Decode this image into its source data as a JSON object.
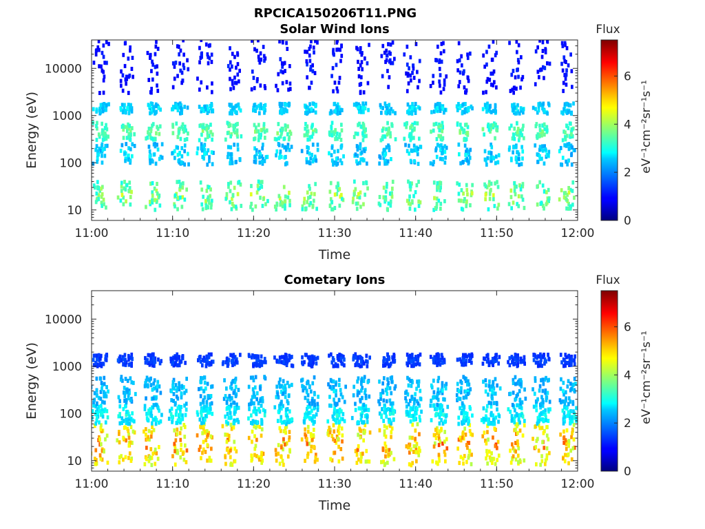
{
  "figure": {
    "title": "RPCICA150206T11.PNG"
  },
  "chart_data": [
    {
      "type": "heatmap",
      "title": "Solar Wind Ions",
      "xlabel": "Time",
      "ylabel": "Energy (eV)",
      "x_ticks": [
        "11:00",
        "11:10",
        "11:20",
        "11:30",
        "11:40",
        "11:50",
        "12:00"
      ],
      "x_range_minutes": [
        0,
        60
      ],
      "y_scale": "log",
      "y_ticks": [
        "10",
        "100",
        "1000",
        "10000"
      ],
      "y_tick_values": [
        10,
        100,
        1000,
        10000
      ],
      "y_range": [
        6,
        40000
      ],
      "colorbar": {
        "label": "Flux",
        "unit_label": "eV⁻¹cm⁻²sr⁻¹s⁻¹",
        "ticks": [
          "0",
          "2",
          "4",
          "6"
        ],
        "tick_values": [
          0,
          2,
          4,
          6
        ],
        "range": [
          0,
          7.5
        ],
        "colormap": "jet"
      },
      "pulse_centers_minutes": [
        1.2,
        4.3,
        7.7,
        10.9,
        14.1,
        17.5,
        20.7,
        23.7,
        26.9,
        30.2,
        33.3,
        36.5,
        39.6,
        42.9,
        46.1,
        49.3,
        52.5,
        55.6,
        58.8
      ],
      "bands": [
        {
          "energy_range": [
            10,
            40
          ],
          "flux_range": [
            2.0,
            4.6
          ]
        },
        {
          "energy_range": [
            90,
            250
          ],
          "flux_range": [
            1.6,
            3.0
          ]
        },
        {
          "energy_range": [
            300,
            700
          ],
          "flux_range": [
            2.4,
            4.0
          ]
        },
        {
          "energy_range": [
            1100,
            1800
          ],
          "flux_range": [
            1.8,
            3.0
          ]
        },
        {
          "energy_range": [
            3000,
            40000
          ],
          "flux_range": [
            0.6,
            1.3
          ]
        }
      ]
    },
    {
      "type": "heatmap",
      "title": "Cometary Ions",
      "xlabel": "Time",
      "ylabel": "Energy (eV)",
      "x_ticks": [
        "11:00",
        "11:10",
        "11:20",
        "11:30",
        "11:40",
        "11:50",
        "12:00"
      ],
      "x_range_minutes": [
        0,
        60
      ],
      "y_scale": "log",
      "y_ticks": [
        "10",
        "100",
        "1000",
        "10000"
      ],
      "y_tick_values": [
        10,
        100,
        1000,
        10000
      ],
      "y_range": [
        6,
        40000
      ],
      "colorbar": {
        "label": "Flux",
        "unit_label": "eV⁻¹cm⁻²sr⁻¹s⁻¹",
        "ticks": [
          "0",
          "2",
          "4",
          "6"
        ],
        "tick_values": [
          0,
          2,
          4,
          6
        ],
        "range": [
          0,
          7.5
        ],
        "colormap": "jet"
      },
      "pulse_centers_minutes": [
        1.0,
        4.3,
        7.5,
        10.7,
        14.0,
        17.2,
        20.5,
        23.7,
        27.0,
        30.2,
        33.3,
        36.5,
        39.7,
        42.9,
        46.1,
        49.3,
        52.5,
        55.6,
        58.9
      ],
      "bands": [
        {
          "energy_range": [
            8,
            60
          ],
          "flux_range": [
            3.0,
            6.2
          ]
        },
        {
          "energy_range": [
            60,
            150
          ],
          "flux_range": [
            2.0,
            3.2
          ]
        },
        {
          "energy_range": [
            150,
            600
          ],
          "flux_range": [
            1.6,
            2.8
          ]
        },
        {
          "energy_range": [
            1000,
            1800
          ],
          "flux_range": [
            1.0,
            1.6
          ]
        }
      ]
    }
  ]
}
